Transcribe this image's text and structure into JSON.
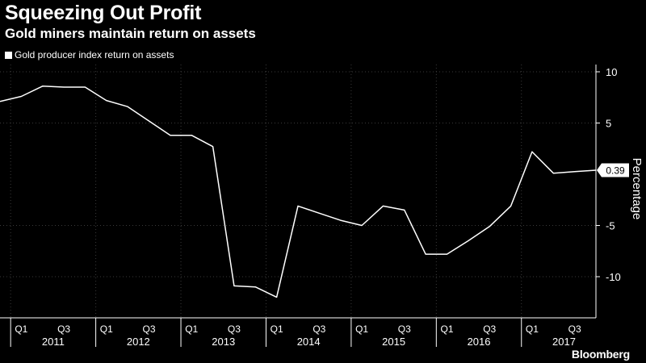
{
  "header": {
    "title": "Squeezing Out Profit",
    "subtitle": "Gold miners maintain return on assets"
  },
  "legend": {
    "label": "Gold producer index return on assets"
  },
  "branding": {
    "logo": "Bloomberg"
  },
  "colors": {
    "background": "#000000",
    "line": "#ffffff",
    "grid": "#3a3a3a",
    "text": "#ffffff"
  },
  "chart_data": {
    "type": "line",
    "title": "Squeezing Out Profit",
    "subtitle": "Gold miners maintain return on assets",
    "xlabel": "",
    "ylabel": "Percentage",
    "ylim": [
      -12.5,
      10.5
    ],
    "y_ticks": [
      10,
      5,
      -5,
      -10
    ],
    "grid": true,
    "legend_position": "top-left",
    "x_ticks": [
      {
        "label": "Q1",
        "x": 2011.125
      },
      {
        "label": "Q3",
        "x": 2011.625
      },
      {
        "label": "Q1",
        "x": 2012.125
      },
      {
        "label": "Q3",
        "x": 2012.625
      },
      {
        "label": "Q1",
        "x": 2013.125
      },
      {
        "label": "Q3",
        "x": 2013.625
      },
      {
        "label": "Q1",
        "x": 2014.125
      },
      {
        "label": "Q3",
        "x": 2014.625
      },
      {
        "label": "Q1",
        "x": 2015.125
      },
      {
        "label": "Q3",
        "x": 2015.625
      },
      {
        "label": "Q1",
        "x": 2016.125
      },
      {
        "label": "Q3",
        "x": 2016.625
      },
      {
        "label": "Q1",
        "x": 2017.125
      },
      {
        "label": "Q3",
        "x": 2017.625
      }
    ],
    "years": [
      "2011",
      "2012",
      "2013",
      "2014",
      "2015",
      "2016",
      "2017"
    ],
    "series": [
      {
        "name": "Gold producer index return on assets",
        "x": [
          2010.875,
          2011.125,
          2011.375,
          2011.625,
          2011.875,
          2012.125,
          2012.375,
          2012.625,
          2012.875,
          2013.125,
          2013.375,
          2013.625,
          2013.875,
          2014.125,
          2014.375,
          2014.625,
          2014.875,
          2015.125,
          2015.375,
          2015.625,
          2015.875,
          2016.125,
          2016.375,
          2016.625,
          2016.875,
          2017.125,
          2017.375,
          2017.625,
          2017.875
        ],
        "values": [
          7.1,
          7.6,
          8.6,
          8.5,
          8.5,
          7.2,
          6.6,
          5.2,
          3.8,
          3.8,
          2.7,
          -10.9,
          -11.0,
          -12.0,
          -3.1,
          -3.8,
          -4.5,
          -5.0,
          -3.1,
          -3.5,
          -7.8,
          -7.8,
          -6.5,
          -5.1,
          -3.1,
          2.2,
          0.1,
          0.25,
          0.39
        ]
      }
    ],
    "annotations": [
      {
        "label": "0.39",
        "x": 2017.875,
        "y": 0.39
      }
    ]
  }
}
